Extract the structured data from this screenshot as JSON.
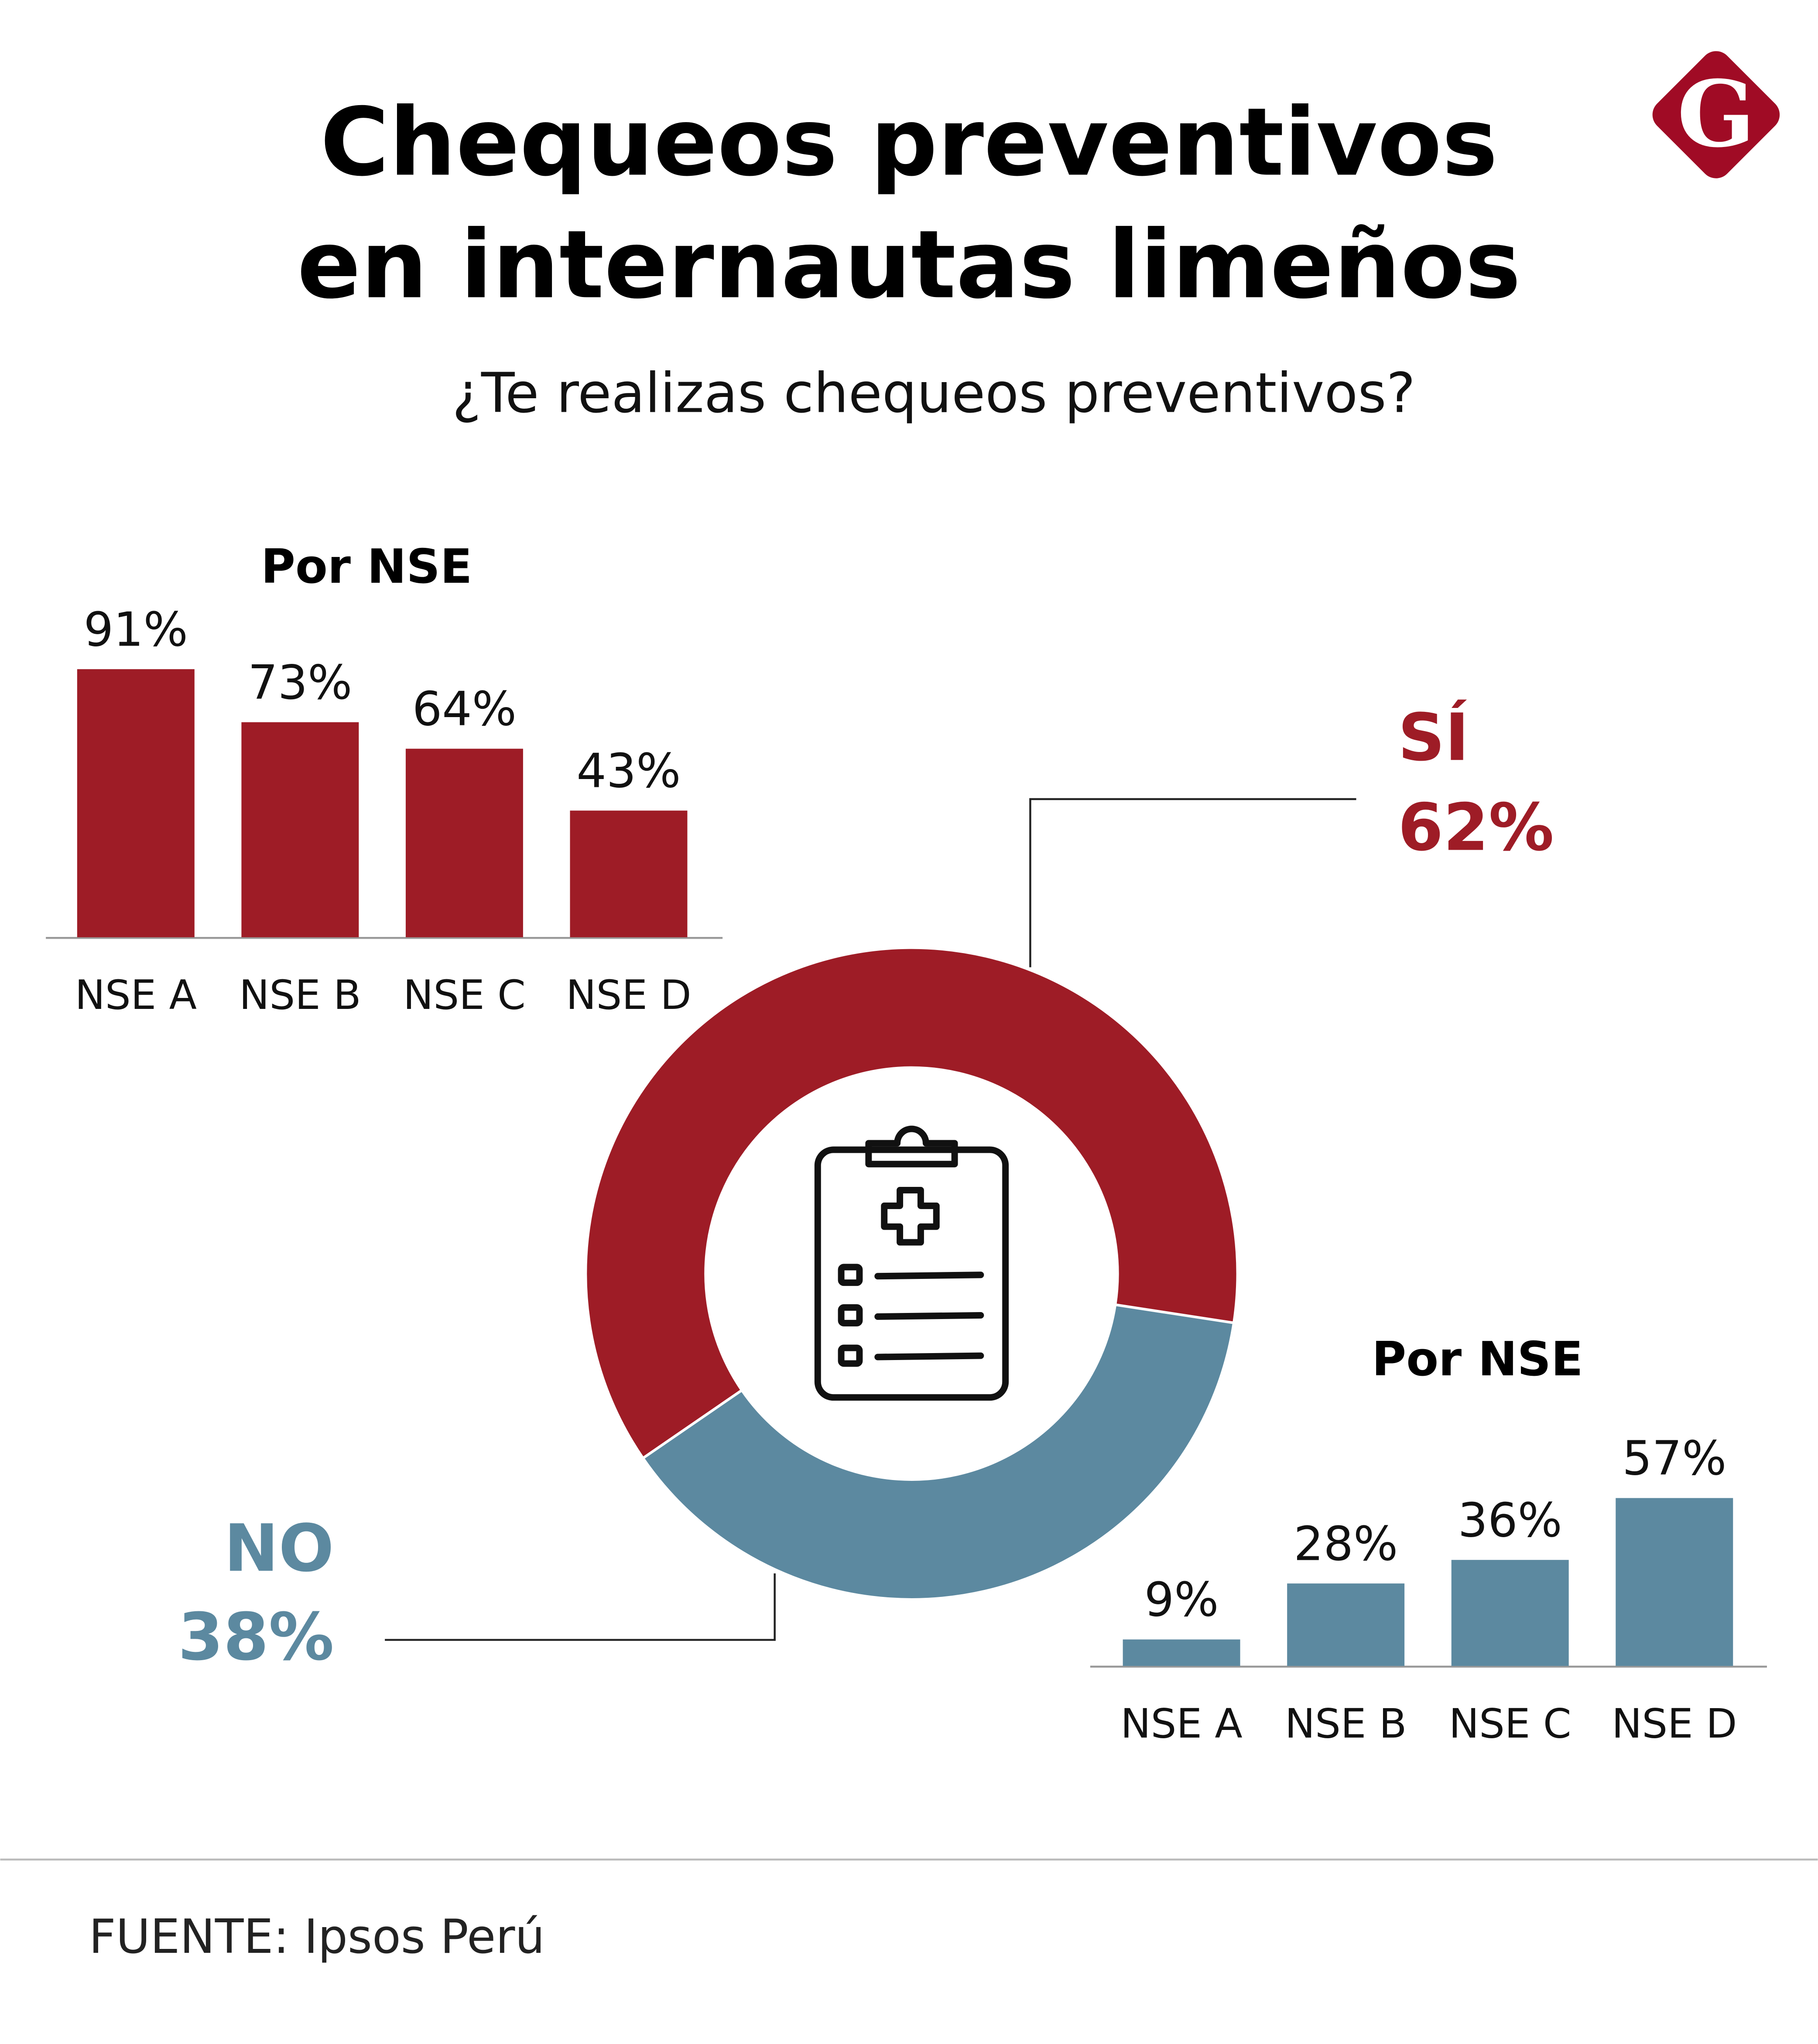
{
  "title_line1": "Chequeos preventivos",
  "title_line2": "en internautas limeños",
  "subtitle": "¿Te realizas chequeos preventivos?",
  "source": "FUENTE: Ipsos Perú",
  "logo_text": "G",
  "colors": {
    "si": "#9e1c26",
    "no": "#5c89a0",
    "logo": "#a00b25"
  },
  "chart_data": [
    {
      "type": "pie",
      "variant": "donut",
      "categories": [
        "SÍ",
        "NO"
      ],
      "values": [
        62,
        38
      ],
      "labels": [
        "62%",
        "38%"
      ],
      "center_icon": "medical-clipboard-icon"
    },
    {
      "type": "bar",
      "title": "Por NSE",
      "series_of": "SÍ",
      "categories": [
        "NSE A",
        "NSE B",
        "NSE C",
        "NSE D"
      ],
      "values": [
        91,
        73,
        64,
        43
      ],
      "labels": [
        "91%",
        "73%",
        "64%",
        "43%"
      ],
      "ylim": [
        0,
        100
      ]
    },
    {
      "type": "bar",
      "title": "Por NSE",
      "series_of": "NO",
      "categories": [
        "NSE A",
        "NSE B",
        "NSE C",
        "NSE D"
      ],
      "values": [
        9,
        28,
        36,
        57
      ],
      "labels": [
        "9%",
        "28%",
        "36%",
        "57%"
      ],
      "ylim": [
        0,
        100
      ]
    }
  ]
}
